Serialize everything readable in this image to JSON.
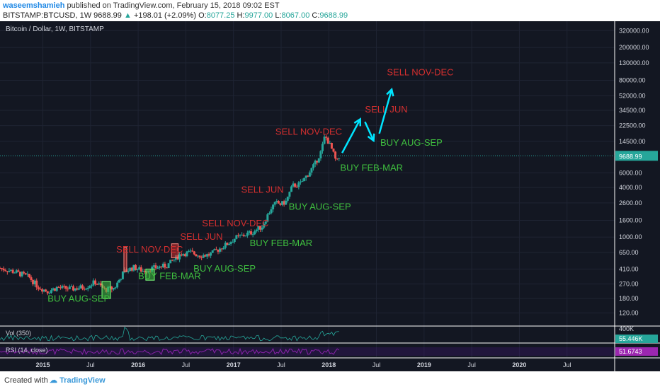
{
  "header": {
    "author": "waseemshamieh",
    "published": "published on TradingView.com, February 15, 2018 09:02 EST",
    "symbol": "BITSTAMP:BTCUSD, 1W",
    "price": "9688.99",
    "change": "+198.01 (+2.09%)",
    "o_label": "O:",
    "o_value": "8077.25",
    "h_label": "H:",
    "h_value": "9977.00",
    "l_label": "L:",
    "l_value": "8067.00",
    "c_label": "C:",
    "c_value": "9688.99"
  },
  "footer": {
    "created_with": "Created with",
    "brand": "TradingView"
  },
  "colors": {
    "background": "#131722",
    "up": "#26a69a",
    "down": "#ef5350",
    "sell": "#d32f2f",
    "buy": "#3fbf3f",
    "arrow": "#00e5ff",
    "rsi": "#9c27b0"
  },
  "chart_data": {
    "type": "candlestick",
    "title": "Bitcoin / Dollar, 1W, BITSTAMP",
    "y_scale": "log",
    "ylim": [
      85,
      400000
    ],
    "y_ticks": [
      "320000.00",
      "200000.00",
      "130000.00",
      "80000.00",
      "52000.00",
      "34500.00",
      "22500.00",
      "14500.00",
      "6000.00",
      "4000.00",
      "2600.00",
      "1600.00",
      "1000.00",
      "650.00",
      "410.00",
      "270.00",
      "180.00",
      "120.00"
    ],
    "y_tick_values": [
      320000,
      200000,
      130000,
      80000,
      52000,
      34500,
      22500,
      14500,
      6000,
      4000,
      2600,
      1600,
      1000,
      650,
      410,
      270,
      180,
      120
    ],
    "x_tick_labels": [
      "2015",
      "Jul",
      "2016",
      "Jul",
      "2017",
      "Jul",
      "2018",
      "Jul",
      "2019",
      "Jul",
      "2020",
      "Jul"
    ],
    "x_tick_values": [
      2015.0,
      2015.5,
      2016.0,
      2016.5,
      2017.0,
      2017.5,
      2018.0,
      2018.5,
      2019.0,
      2019.5,
      2020.0,
      2020.5
    ],
    "xlim": [
      2014.55,
      2021.0
    ],
    "last_price_label": "9688.99",
    "last_price": 9688.99,
    "price_path": [
      [
        2014.55,
        420
      ],
      [
        2014.7,
        380
      ],
      [
        2014.85,
        330
      ],
      [
        2014.95,
        250
      ],
      [
        2015.05,
        220
      ],
      [
        2015.15,
        245
      ],
      [
        2015.3,
        235
      ],
      [
        2015.45,
        250
      ],
      [
        2015.55,
        285
      ],
      [
        2015.65,
        230
      ],
      [
        2015.75,
        240
      ],
      [
        2015.85,
        380
      ],
      [
        2015.95,
        430
      ],
      [
        2016.05,
        390
      ],
      [
        2016.15,
        420
      ],
      [
        2016.3,
        450
      ],
      [
        2016.45,
        630
      ],
      [
        2016.55,
        650
      ],
      [
        2016.65,
        600
      ],
      [
        2016.75,
        610
      ],
      [
        2016.85,
        720
      ],
      [
        2016.95,
        850
      ],
      [
        2017.02,
        980
      ],
      [
        2017.1,
        1050
      ],
      [
        2017.2,
        1150
      ],
      [
        2017.3,
        1350
      ],
      [
        2017.4,
        2300
      ],
      [
        2017.45,
        2600
      ],
      [
        2017.5,
        2500
      ],
      [
        2017.55,
        2700
      ],
      [
        2017.62,
        4200
      ],
      [
        2017.7,
        4400
      ],
      [
        2017.78,
        5800
      ],
      [
        2017.85,
        7500
      ],
      [
        2017.92,
        11000
      ],
      [
        2017.96,
        17000
      ],
      [
        2018.0,
        14000
      ],
      [
        2018.04,
        11000
      ],
      [
        2018.08,
        8000
      ],
      [
        2018.12,
        9689
      ]
    ],
    "volume_label": "Vol (350)",
    "volume_axis_label": "400K",
    "volume_last": "55.446K",
    "rsi_label": "RSI (14, close)",
    "rsi_last": "51.6743",
    "annotations": [
      {
        "text": "SELL NOV-DEC",
        "type": "sell",
        "x": 2015.77,
        "y": 650
      },
      {
        "text": "BUY FEB-MAR",
        "type": "buy",
        "x": 2016.0,
        "y": 310
      },
      {
        "text": "BUY AUG-SEP",
        "type": "buy",
        "x": 2015.05,
        "y": 165
      },
      {
        "text": "SELL JUN",
        "type": "sell",
        "x": 2016.44,
        "y": 930
      },
      {
        "text": "BUY AUG-SEP",
        "type": "buy",
        "x": 2016.58,
        "y": 380
      },
      {
        "text": "SELL NOV-DEC",
        "type": "sell",
        "x": 2016.67,
        "y": 1350
      },
      {
        "text": "BUY FEB-MAR",
        "type": "buy",
        "x": 2017.17,
        "y": 780
      },
      {
        "text": "SELL JUN",
        "type": "sell",
        "x": 2017.08,
        "y": 3450
      },
      {
        "text": "BUY AUG-SEP",
        "type": "buy",
        "x": 2017.58,
        "y": 2150
      },
      {
        "text": "SELL NOV-DEC",
        "type": "sell",
        "x": 2017.44,
        "y": 17500
      },
      {
        "text": "BUY FEB-MAR",
        "type": "buy",
        "x": 2018.12,
        "y": 6400
      },
      {
        "text": "SELL JUN",
        "type": "sell",
        "x": 2018.38,
        "y": 32500
      },
      {
        "text": "BUY AUG-SEP",
        "type": "buy",
        "x": 2018.54,
        "y": 12800
      },
      {
        "text": "SELL NOV-DEC",
        "type": "sell",
        "x": 2018.61,
        "y": 92000
      }
    ],
    "boxes": [
      {
        "type": "buy",
        "x0": 2015.62,
        "x1": 2015.71,
        "y0": 180,
        "y1": 290
      },
      {
        "type": "sell",
        "x0": 2015.85,
        "x1": 2015.88,
        "y0": 380,
        "y1": 750
      },
      {
        "type": "buy",
        "x0": 2016.08,
        "x1": 2016.17,
        "y0": 300,
        "y1": 410
      },
      {
        "type": "sell",
        "x0": 2016.35,
        "x1": 2016.42,
        "y0": 560,
        "y1": 830
      }
    ],
    "arrows": [
      [
        [
          2018.14,
          10500
        ],
        [
          2018.33,
          27000
        ]
      ],
      [
        [
          2018.38,
          25000
        ],
        [
          2018.47,
          14800
        ]
      ],
      [
        [
          2018.53,
          18000
        ],
        [
          2018.66,
          62000
        ]
      ]
    ]
  }
}
